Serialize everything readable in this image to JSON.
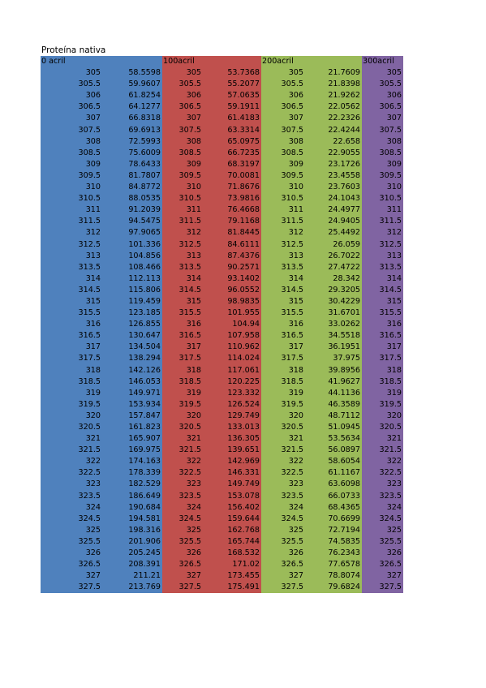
{
  "title": "Proteína nativa",
  "colors": {
    "blue": "#4f81bd",
    "red": "#c0504d",
    "green": "#9bbb59",
    "purple": "#8064a2"
  },
  "headers": [
    "0 acril",
    "",
    "100acril",
    "",
    "200acril",
    "",
    "300acril"
  ],
  "rows": [
    [
      "305",
      "58.5598",
      "305",
      "53.7368",
      "305",
      "21.7609",
      "305"
    ],
    [
      "305.5",
      "59.9607",
      "305.5",
      "55.2077",
      "305.5",
      "21.8398",
      "305.5"
    ],
    [
      "306",
      "61.8254",
      "306",
      "57.0635",
      "306",
      "21.9262",
      "306"
    ],
    [
      "306.5",
      "64.1277",
      "306.5",
      "59.1911",
      "306.5",
      "22.0562",
      "306.5"
    ],
    [
      "307",
      "66.8318",
      "307",
      "61.4183",
      "307",
      "22.2326",
      "307"
    ],
    [
      "307.5",
      "69.6913",
      "307.5",
      "63.3314",
      "307.5",
      "22.4244",
      "307.5"
    ],
    [
      "308",
      "72.5993",
      "308",
      "65.0975",
      "308",
      "22.658",
      "308"
    ],
    [
      "308.5",
      "75.6009",
      "308.5",
      "66.7235",
      "308.5",
      "22.9055",
      "308.5"
    ],
    [
      "309",
      "78.6433",
      "309",
      "68.3197",
      "309",
      "23.1726",
      "309"
    ],
    [
      "309.5",
      "81.7807",
      "309.5",
      "70.0081",
      "309.5",
      "23.4558",
      "309.5"
    ],
    [
      "310",
      "84.8772",
      "310",
      "71.8676",
      "310",
      "23.7603",
      "310"
    ],
    [
      "310.5",
      "88.0535",
      "310.5",
      "73.9816",
      "310.5",
      "24.1043",
      "310.5"
    ],
    [
      "311",
      "91.2039",
      "311",
      "76.4668",
      "311",
      "24.4977",
      "311"
    ],
    [
      "311.5",
      "94.5475",
      "311.5",
      "79.1168",
      "311.5",
      "24.9405",
      "311.5"
    ],
    [
      "312",
      "97.9065",
      "312",
      "81.8445",
      "312",
      "25.4492",
      "312"
    ],
    [
      "312.5",
      "101.336",
      "312.5",
      "84.6111",
      "312.5",
      "26.059",
      "312.5"
    ],
    [
      "313",
      "104.856",
      "313",
      "87.4376",
      "313",
      "26.7022",
      "313"
    ],
    [
      "313.5",
      "108.466",
      "313.5",
      "90.2571",
      "313.5",
      "27.4722",
      "313.5"
    ],
    [
      "314",
      "112.113",
      "314",
      "93.1402",
      "314",
      "28.342",
      "314"
    ],
    [
      "314.5",
      "115.806",
      "314.5",
      "96.0552",
      "314.5",
      "29.3205",
      "314.5"
    ],
    [
      "315",
      "119.459",
      "315",
      "98.9835",
      "315",
      "30.4229",
      "315"
    ],
    [
      "315.5",
      "123.185",
      "315.5",
      "101.955",
      "315.5",
      "31.6701",
      "315.5"
    ],
    [
      "316",
      "126.855",
      "316",
      "104.94",
      "316",
      "33.0262",
      "316"
    ],
    [
      "316.5",
      "130.647",
      "316.5",
      "107.958",
      "316.5",
      "34.5518",
      "316.5"
    ],
    [
      "317",
      "134.504",
      "317",
      "110.962",
      "317",
      "36.1951",
      "317"
    ],
    [
      "317.5",
      "138.294",
      "317.5",
      "114.024",
      "317.5",
      "37.975",
      "317.5"
    ],
    [
      "318",
      "142.126",
      "318",
      "117.061",
      "318",
      "39.8956",
      "318"
    ],
    [
      "318.5",
      "146.053",
      "318.5",
      "120.225",
      "318.5",
      "41.9627",
      "318.5"
    ],
    [
      "319",
      "149.971",
      "319",
      "123.332",
      "319",
      "44.1136",
      "319"
    ],
    [
      "319.5",
      "153.934",
      "319.5",
      "126.524",
      "319.5",
      "46.3589",
      "319.5"
    ],
    [
      "320",
      "157.847",
      "320",
      "129.749",
      "320",
      "48.7112",
      "320"
    ],
    [
      "320.5",
      "161.823",
      "320.5",
      "133.013",
      "320.5",
      "51.0945",
      "320.5"
    ],
    [
      "321",
      "165.907",
      "321",
      "136.305",
      "321",
      "53.5634",
      "321"
    ],
    [
      "321.5",
      "169.975",
      "321.5",
      "139.651",
      "321.5",
      "56.0897",
      "321.5"
    ],
    [
      "322",
      "174.163",
      "322",
      "142.969",
      "322",
      "58.6054",
      "322"
    ],
    [
      "322.5",
      "178.339",
      "322.5",
      "146.331",
      "322.5",
      "61.1167",
      "322.5"
    ],
    [
      "323",
      "182.529",
      "323",
      "149.749",
      "323",
      "63.6098",
      "323"
    ],
    [
      "323.5",
      "186.649",
      "323.5",
      "153.078",
      "323.5",
      "66.0733",
      "323.5"
    ],
    [
      "324",
      "190.684",
      "324",
      "156.402",
      "324",
      "68.4365",
      "324"
    ],
    [
      "324.5",
      "194.581",
      "324.5",
      "159.644",
      "324.5",
      "70.6699",
      "324.5"
    ],
    [
      "325",
      "198.316",
      "325",
      "162.768",
      "325",
      "72.7194",
      "325"
    ],
    [
      "325.5",
      "201.906",
      "325.5",
      "165.744",
      "325.5",
      "74.5835",
      "325.5"
    ],
    [
      "326",
      "205.245",
      "326",
      "168.532",
      "326",
      "76.2343",
      "326"
    ],
    [
      "326.5",
      "208.391",
      "326.5",
      "171.02",
      "326.5",
      "77.6578",
      "326.5"
    ],
    [
      "327",
      "211.21",
      "327",
      "173.455",
      "327",
      "78.8074",
      "327"
    ],
    [
      "327.5",
      "213.769",
      "327.5",
      "175.491",
      "327.5",
      "79.6824",
      "327.5"
    ]
  ]
}
